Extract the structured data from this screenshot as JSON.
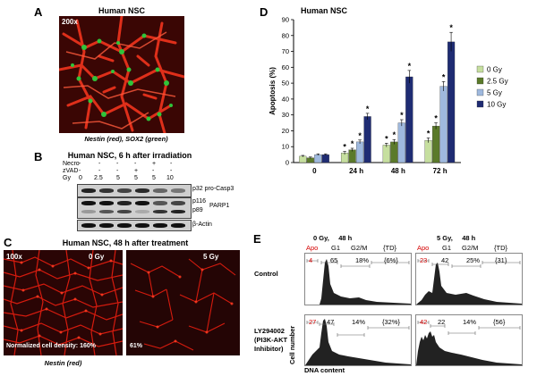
{
  "panelA": {
    "letter": "A",
    "title": "Human NSC",
    "magnification": "200x",
    "caption": "Nestin (red), SOX2  (green)"
  },
  "panelB": {
    "letter": "B",
    "title": "Human NSC, 6 h after irradiation",
    "row_necro_label": "Necro",
    "row_zvad_label": "zVAD",
    "row_gy_label": "Gy",
    "necro": [
      "-",
      "-",
      "-",
      "-",
      "+",
      "-"
    ],
    "zvad": [
      "-",
      "-",
      "-",
      "+",
      "-",
      "-"
    ],
    "gy": [
      "0",
      "2.5",
      "5",
      "5",
      "5",
      "10"
    ],
    "band_casp3": "p32 pro-Casp3",
    "band_p116": "p116",
    "band_p89": "p89",
    "band_parp": "PARP1",
    "band_actin": "β-Actin"
  },
  "panelC": {
    "letter": "C",
    "title": "Human NSC, 48 h after treatment",
    "magnification": "100x",
    "left_dose": "0 Gy",
    "right_dose": "5 Gy",
    "left_density": "Normalized cell density: 160%",
    "right_density": "61%",
    "caption": "Nestin (red)"
  },
  "panelD": {
    "letter": "D",
    "chart_data": {
      "type": "bar",
      "title": "Human NSC",
      "ylabel": "Apoptosis (%)",
      "xlabel": "",
      "categories": [
        "0",
        "24 h",
        "48 h",
        "72 h"
      ],
      "ylim": [
        0,
        90
      ],
      "yticks": [
        0,
        10,
        20,
        30,
        40,
        50,
        60,
        70,
        80,
        90
      ],
      "legend_position": "right",
      "series": [
        {
          "name": "0 Gy",
          "color": "#c6df9f",
          "values": [
            4,
            6,
            11,
            14
          ],
          "errors": [
            0.5,
            1,
            1.2,
            1.5
          ],
          "star": [
            false,
            true,
            true,
            true
          ]
        },
        {
          "name": "2.5 Gy",
          "color": "#5b7a2a",
          "values": [
            3,
            8,
            13,
            23
          ],
          "errors": [
            0.5,
            1,
            1.5,
            2
          ],
          "star": [
            false,
            true,
            true,
            true
          ]
        },
        {
          "name": "5 Gy",
          "color": "#9fb9de",
          "values": [
            5,
            13,
            25,
            48
          ],
          "errors": [
            0.5,
            1.2,
            2,
            3
          ],
          "star": [
            false,
            true,
            true,
            true
          ]
        },
        {
          "name": "10 Gy",
          "color": "#1f2c73",
          "values": [
            5,
            29,
            54,
            76
          ],
          "errors": [
            0.5,
            2,
            4,
            6
          ],
          "star": [
            false,
            true,
            true,
            true
          ]
        }
      ]
    }
  },
  "panelE": {
    "letter": "E",
    "col1_header": "0 Gy,     48 h",
    "col2_header": "5 Gy,     48 h",
    "row1_label": "Control",
    "row2_label_1": "LY294002",
    "row2_label_2": "(PI3K-AKT",
    "row2_label_3": "Inhibitor)",
    "ylabel": "Cell number",
    "xlabel": "DNA content",
    "head_apo": "Apo",
    "head_g1": "G1",
    "head_g2m": "G2/M",
    "head_td": "{TD}",
    "hist": [
      {
        "apo": "4",
        "g1": "65",
        "g2m": "18%",
        "td": "{6%}"
      },
      {
        "apo": "23",
        "g1": "42",
        "g2m": "25%",
        "td": "{31}"
      },
      {
        "apo": "27",
        "g1": "47",
        "g2m": "14%",
        "td": "{32%}"
      },
      {
        "apo": "42",
        "g1": "22",
        "g2m": "14%",
        "td": "{56}"
      }
    ]
  }
}
